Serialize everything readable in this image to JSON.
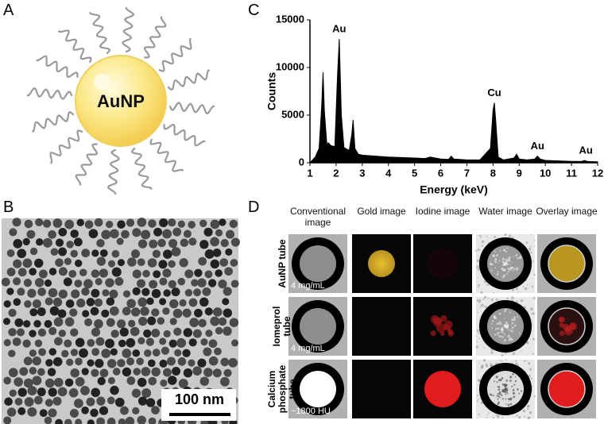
{
  "panels": {
    "a": {
      "label": "A",
      "particle_label": "AuNP"
    },
    "b": {
      "label": "B",
      "scale_bar": "100 nm"
    },
    "c": {
      "label": "C"
    },
    "d": {
      "label": "D",
      "columns": [
        "Conventional image",
        "Gold image",
        "Iodine image",
        "Water image",
        "Overlay image"
      ],
      "rows": [
        {
          "label": "AuNP tube",
          "note": "4 mg/mL"
        },
        {
          "label": "Iomeprol tube",
          "note": "4 mg/mL"
        },
        {
          "label": "Calcium phosphate tube",
          "note": "~1800 HU"
        }
      ]
    }
  },
  "chart_data": {
    "type": "area",
    "xlabel": "Energy (keV)",
    "ylabel": "Counts",
    "color": "#000000",
    "x": [
      1.0,
      1.2,
      1.35,
      1.45,
      1.5,
      1.55,
      1.65,
      1.7,
      1.8,
      1.95,
      2.05,
      2.12,
      2.2,
      2.3,
      2.5,
      2.6,
      2.65,
      2.72,
      2.85,
      3.0,
      3.5,
      4.0,
      4.5,
      5.0,
      5.4,
      5.6,
      6.0,
      6.3,
      6.4,
      6.5,
      7.0,
      7.5,
      7.9,
      8.0,
      8.05,
      8.1,
      8.2,
      8.4,
      8.8,
      8.9,
      9.0,
      9.3,
      9.6,
      9.7,
      9.8,
      10.0,
      10.5,
      11.0,
      11.4,
      11.5,
      11.6,
      12.0
    ],
    "values": [
      0,
      600,
      1500,
      6000,
      9500,
      5500,
      1800,
      2100,
      1800,
      1700,
      9000,
      13000,
      5000,
      1600,
      1300,
      3000,
      4500,
      1500,
      900,
      800,
      700,
      600,
      550,
      500,
      450,
      600,
      400,
      350,
      700,
      400,
      300,
      300,
      1500,
      5500,
      6300,
      4500,
      600,
      300,
      500,
      900,
      400,
      300,
      400,
      700,
      400,
      250,
      200,
      150,
      150,
      250,
      150,
      100
    ],
    "xlim": [
      1,
      12
    ],
    "ylim": [
      0,
      15000
    ],
    "xticks": [
      1,
      2,
      3,
      4,
      5,
      6,
      7,
      8,
      9,
      10,
      11,
      12
    ],
    "yticks": [
      0,
      5000,
      10000,
      15000
    ],
    "annotations": [
      {
        "text": "Au",
        "x": 2.12
      },
      {
        "text": "Cu",
        "x": 8.05
      },
      {
        "text": "Au",
        "x": 9.7
      },
      {
        "text": "Au",
        "x": 11.55
      }
    ]
  }
}
